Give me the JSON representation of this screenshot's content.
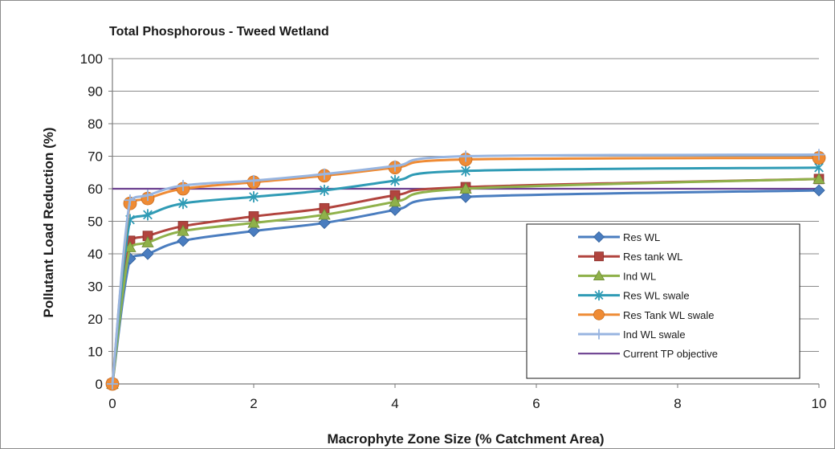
{
  "chart_data": {
    "type": "line",
    "title": "Total Phosphorous - Tweed Wetland",
    "xlabel": "Macrophyte Zone Size (% Catchment Area)",
    "ylabel": "Pollutant Load Reduction (%)",
    "xlim": [
      0,
      10
    ],
    "ylim": [
      0,
      100
    ],
    "xticks": [
      0,
      2,
      4,
      6,
      8,
      10
    ],
    "yticks": [
      0,
      10,
      20,
      30,
      40,
      50,
      60,
      70,
      80,
      90,
      100
    ],
    "xtick_labels": [
      "0",
      "2",
      "4",
      "6",
      "8",
      "10"
    ],
    "ytick_labels": [
      "0",
      "10",
      "20",
      "30",
      "40",
      "50",
      "60",
      "70",
      "80",
      "90",
      "100"
    ],
    "grid": "horizontal",
    "legend_position": "bottom-right",
    "x": [
      0,
      0.25,
      0.5,
      1,
      2,
      3,
      4,
      5,
      10
    ],
    "series": [
      {
        "name": "Res WL",
        "color": "#4a7dbf",
        "marker": "diamond",
        "values": [
          0,
          38.5,
          40,
          44,
          47,
          49.5,
          53.5,
          57.5,
          59.5
        ]
      },
      {
        "name": "Res tank WL",
        "color": "#b1443e",
        "marker": "square",
        "values": [
          0,
          44,
          45.5,
          48.5,
          51.5,
          54,
          58,
          60.5,
          63
        ]
      },
      {
        "name": "Ind WL",
        "color": "#8fb14a",
        "marker": "triangle",
        "values": [
          0,
          42,
          43.5,
          47,
          49.5,
          52,
          56,
          60,
          63
        ]
      },
      {
        "name": "Res WL swale",
        "color": "#2f9bb5",
        "marker": "asterisk",
        "values": [
          0,
          50.5,
          52,
          55.5,
          57.5,
          59.5,
          62.5,
          65.5,
          66.5
        ]
      },
      {
        "name": "Res Tank WL swale",
        "color": "#ef8b34",
        "marker": "circle",
        "values": [
          0,
          55.5,
          57,
          60,
          62,
          64,
          66.5,
          69,
          69.5
        ]
      },
      {
        "name": "Ind WL swale",
        "color": "#98b5e0",
        "marker": "plus",
        "values": [
          0,
          56.5,
          58,
          61,
          62.5,
          64.5,
          67,
          70,
          70.5
        ]
      },
      {
        "name": "Current TP objective",
        "color": "#6b3f8f",
        "marker": "none",
        "values": [
          60,
          60,
          60,
          60,
          60,
          60,
          60,
          60,
          60
        ]
      }
    ]
  }
}
